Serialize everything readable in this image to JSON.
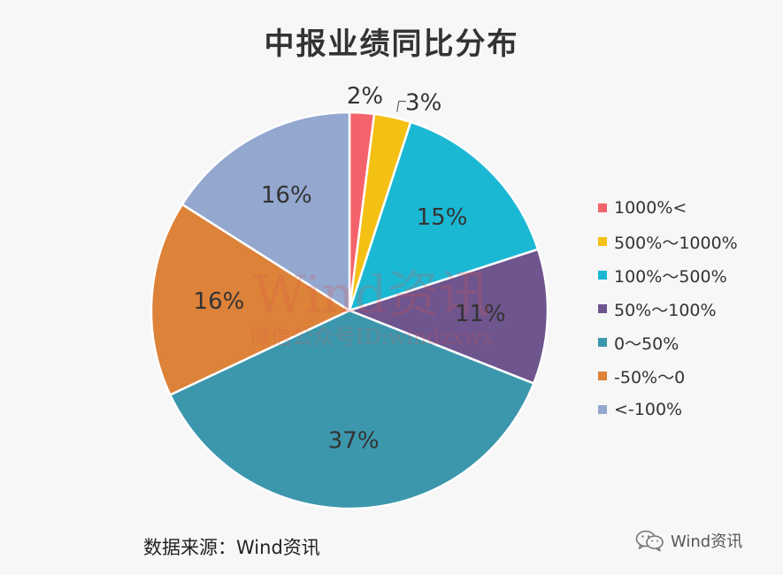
{
  "chart_data": {
    "type": "pie",
    "title": "中报业绩同比分布",
    "slices": [
      {
        "label": "1000%<",
        "value": 2,
        "data_label": "2%",
        "color": "#f4636b"
      },
      {
        "label": "500%～1000%",
        "value": 3,
        "data_label": "3%",
        "color": "#f5c014"
      },
      {
        "label": "100%～500%",
        "value": 15,
        "data_label": "15%",
        "color": "#1bb8d4"
      },
      {
        "label": "50%～100%",
        "value": 11,
        "data_label": "11%",
        "color": "#6e558e"
      },
      {
        "label": "0～50%",
        "value": 37,
        "data_label": "37%",
        "color": "#3c97ad"
      },
      {
        "label": "-50%～0",
        "value": 16,
        "data_label": "16%",
        "color": "#dd8239"
      },
      {
        "label": "<-100%",
        "value": 16,
        "data_label": "16%",
        "color": "#93a7cf"
      }
    ],
    "legend_position": "right"
  },
  "watermark": {
    "main": "Wind资讯",
    "sub": "微信公众号ID:windzxwx"
  },
  "source": "数据来源：Wind资讯",
  "footer_brand": "Wind资讯",
  "footer_icon": "wechat-icon"
}
